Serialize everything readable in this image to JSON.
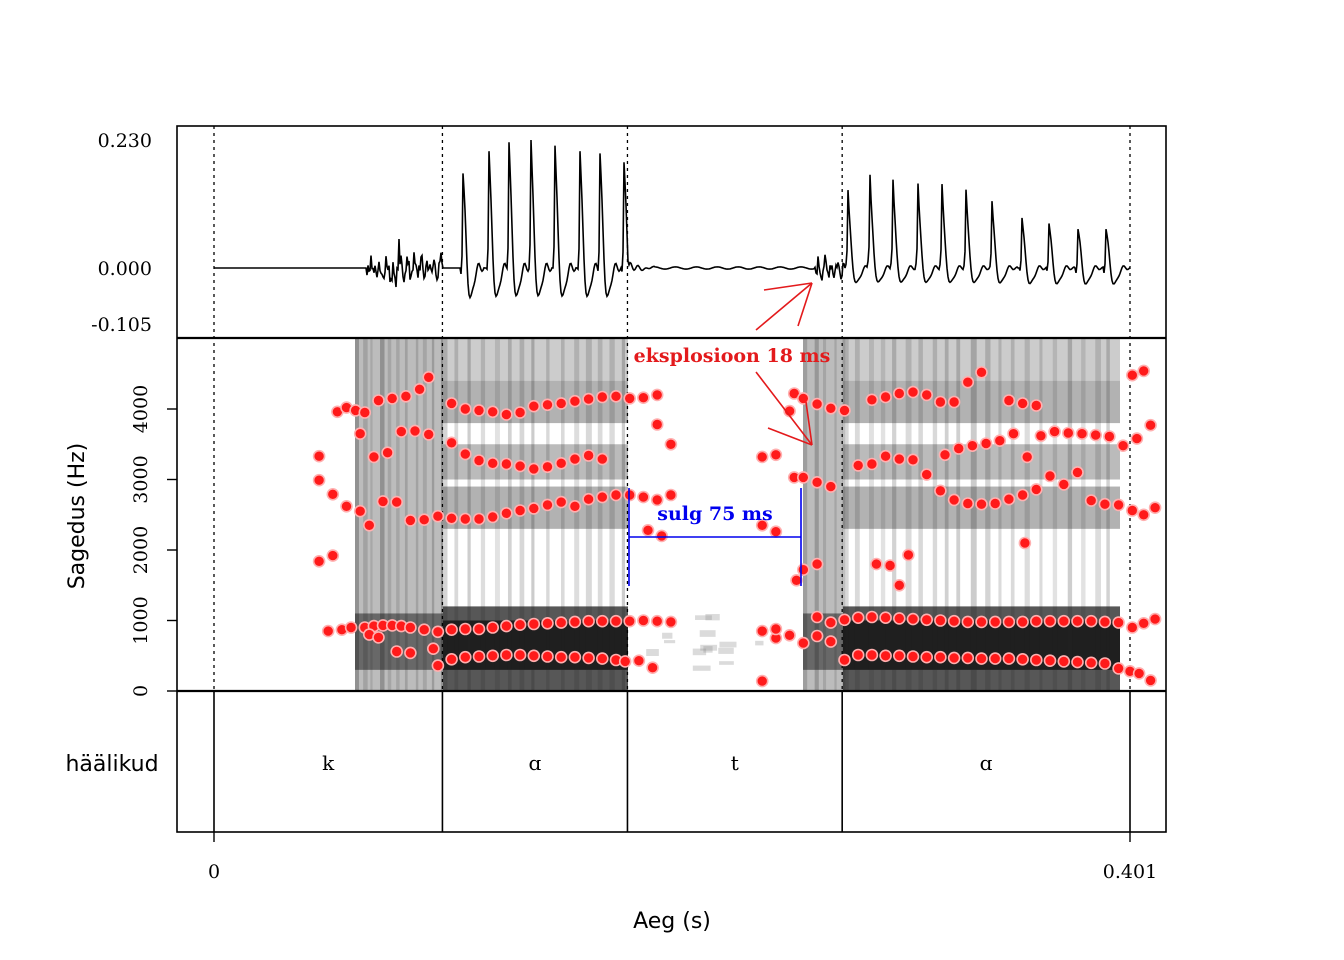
{
  "chart_data": {
    "type": "spectrogram-waveform-textgrid",
    "x_axis": {
      "label": "Aeg (s)",
      "range": [
        0,
        0.401
      ],
      "tick_labels": [
        "0",
        "0.401"
      ]
    },
    "waveform": {
      "y_range": [
        -0.105,
        0.23
      ],
      "y_tick_labels": [
        "0.230",
        "0.000",
        "-0.105"
      ]
    },
    "spectrogram": {
      "y_label": "Sagedus (Hz)",
      "y_range": [
        0,
        5000
      ],
      "y_ticks": [
        0,
        1000,
        2000,
        3000,
        4000
      ],
      "y_tick_labels": [
        "0",
        "1000",
        "2000",
        "3000",
        "4000"
      ],
      "formant_color": "#ff1a1a"
    },
    "tier": {
      "name": "häälikud",
      "boundaries": [
        0,
        0.1,
        0.181,
        0.275,
        0.401
      ],
      "intervals": [
        {
          "label": "k",
          "start": 0,
          "end": 0.1
        },
        {
          "label": "ɑ",
          "start": 0.1,
          "end": 0.181
        },
        {
          "label": "t",
          "start": 0.181,
          "end": 0.275
        },
        {
          "label": "ɑ",
          "start": 0.275,
          "end": 0.401
        }
      ]
    },
    "annotations": [
      {
        "text": "eksplosioon 18 ms",
        "color": "#e31a1c"
      },
      {
        "text": "sulg 75 ms",
        "color": "#0000ee",
        "start": 0.181,
        "end": 0.256
      }
    ],
    "formants": {
      "F1": [
        [
          0.05,
          850
        ],
        [
          0.056,
          870
        ],
        [
          0.06,
          900
        ],
        [
          0.066,
          900
        ],
        [
          0.07,
          920
        ],
        [
          0.074,
          930
        ],
        [
          0.078,
          930
        ],
        [
          0.082,
          920
        ],
        [
          0.086,
          900
        ],
        [
          0.092,
          870
        ],
        [
          0.068,
          800
        ],
        [
          0.072,
          760
        ],
        [
          0.08,
          560
        ],
        [
          0.086,
          540
        ],
        [
          0.096,
          600
        ],
        [
          0.098,
          360
        ],
        [
          0.104,
          450
        ],
        [
          0.11,
          480
        ],
        [
          0.116,
          490
        ],
        [
          0.122,
          500
        ],
        [
          0.128,
          510
        ],
        [
          0.134,
          510
        ],
        [
          0.14,
          500
        ],
        [
          0.146,
          490
        ],
        [
          0.152,
          480
        ],
        [
          0.158,
          480
        ],
        [
          0.164,
          470
        ],
        [
          0.17,
          460
        ],
        [
          0.176,
          440
        ],
        [
          0.18,
          420
        ],
        [
          0.186,
          430
        ],
        [
          0.192,
          330
        ],
        [
          0.24,
          140
        ],
        [
          0.246,
          750
        ],
        [
          0.252,
          790
        ],
        [
          0.258,
          680
        ],
        [
          0.264,
          780
        ],
        [
          0.27,
          700
        ],
        [
          0.276,
          440
        ],
        [
          0.282,
          510
        ],
        [
          0.288,
          510
        ],
        [
          0.294,
          500
        ],
        [
          0.3,
          500
        ],
        [
          0.306,
          490
        ],
        [
          0.312,
          480
        ],
        [
          0.318,
          480
        ],
        [
          0.324,
          470
        ],
        [
          0.33,
          470
        ],
        [
          0.336,
          460
        ],
        [
          0.342,
          460
        ],
        [
          0.348,
          460
        ],
        [
          0.354,
          450
        ],
        [
          0.36,
          440
        ],
        [
          0.366,
          430
        ],
        [
          0.372,
          420
        ],
        [
          0.378,
          410
        ],
        [
          0.384,
          400
        ],
        [
          0.39,
          390
        ],
        [
          0.396,
          320
        ],
        [
          0.401,
          280
        ],
        [
          0.405,
          250
        ],
        [
          0.41,
          150
        ]
      ],
      "F2": [
        [
          0.098,
          840
        ],
        [
          0.104,
          870
        ],
        [
          0.11,
          880
        ],
        [
          0.116,
          880
        ],
        [
          0.122,
          900
        ],
        [
          0.128,
          920
        ],
        [
          0.134,
          940
        ],
        [
          0.14,
          950
        ],
        [
          0.146,
          960
        ],
        [
          0.152,
          970
        ],
        [
          0.158,
          980
        ],
        [
          0.164,
          990
        ],
        [
          0.17,
          990
        ],
        [
          0.176,
          990
        ],
        [
          0.182,
          990
        ],
        [
          0.188,
          1000
        ],
        [
          0.194,
          990
        ],
        [
          0.2,
          980
        ],
        [
          0.24,
          850
        ],
        [
          0.246,
          880
        ],
        [
          0.264,
          1050
        ],
        [
          0.27,
          970
        ],
        [
          0.276,
          1010
        ],
        [
          0.282,
          1040
        ],
        [
          0.288,
          1050
        ],
        [
          0.294,
          1040
        ],
        [
          0.3,
          1030
        ],
        [
          0.306,
          1020
        ],
        [
          0.312,
          1010
        ],
        [
          0.318,
          1000
        ],
        [
          0.324,
          990
        ],
        [
          0.33,
          980
        ],
        [
          0.336,
          980
        ],
        [
          0.342,
          980
        ],
        [
          0.348,
          980
        ],
        [
          0.354,
          980
        ],
        [
          0.36,
          990
        ],
        [
          0.366,
          990
        ],
        [
          0.372,
          990
        ],
        [
          0.378,
          990
        ],
        [
          0.384,
          990
        ],
        [
          0.39,
          980
        ],
        [
          0.396,
          970
        ],
        [
          0.402,
          900
        ],
        [
          0.407,
          960
        ],
        [
          0.412,
          1020
        ]
      ],
      "F_mid": [
        [
          0.046,
          1840
        ],
        [
          0.052,
          1920
        ],
        [
          0.255,
          1570
        ],
        [
          0.258,
          1720
        ],
        [
          0.264,
          1800
        ],
        [
          0.29,
          1800
        ],
        [
          0.296,
          1780
        ],
        [
          0.3,
          1500
        ],
        [
          0.304,
          1930
        ],
        [
          0.355,
          2100
        ],
        [
          0.24,
          2350
        ],
        [
          0.246,
          2260
        ],
        [
          0.19,
          2280
        ],
        [
          0.196,
          2200
        ]
      ],
      "F3": [
        [
          0.046,
          3330
        ],
        [
          0.046,
          2990
        ],
        [
          0.052,
          2790
        ],
        [
          0.058,
          2620
        ],
        [
          0.064,
          2550
        ],
        [
          0.068,
          2350
        ],
        [
          0.074,
          2690
        ],
        [
          0.08,
          2680
        ],
        [
          0.086,
          2420
        ],
        [
          0.092,
          2430
        ],
        [
          0.098,
          2480
        ],
        [
          0.104,
          2450
        ],
        [
          0.11,
          2440
        ],
        [
          0.116,
          2440
        ],
        [
          0.122,
          2470
        ],
        [
          0.128,
          2520
        ],
        [
          0.134,
          2560
        ],
        [
          0.14,
          2590
        ],
        [
          0.146,
          2640
        ],
        [
          0.152,
          2680
        ],
        [
          0.158,
          2620
        ],
        [
          0.164,
          2720
        ],
        [
          0.17,
          2750
        ],
        [
          0.176,
          2780
        ],
        [
          0.182,
          2780
        ],
        [
          0.188,
          2750
        ],
        [
          0.194,
          2710
        ],
        [
          0.2,
          2780
        ],
        [
          0.254,
          3030
        ],
        [
          0.258,
          3030
        ],
        [
          0.264,
          2960
        ],
        [
          0.27,
          2900
        ],
        [
          0.282,
          3200
        ],
        [
          0.288,
          3220
        ],
        [
          0.294,
          3330
        ],
        [
          0.3,
          3290
        ],
        [
          0.306,
          3280
        ],
        [
          0.312,
          3070
        ],
        [
          0.318,
          2840
        ],
        [
          0.324,
          2710
        ],
        [
          0.33,
          2660
        ],
        [
          0.336,
          2650
        ],
        [
          0.342,
          2660
        ],
        [
          0.348,
          2720
        ],
        [
          0.354,
          2780
        ],
        [
          0.36,
          2860
        ],
        [
          0.366,
          3050
        ],
        [
          0.372,
          2930
        ],
        [
          0.378,
          3100
        ],
        [
          0.384,
          2700
        ],
        [
          0.39,
          2650
        ],
        [
          0.396,
          2640
        ],
        [
          0.402,
          2560
        ],
        [
          0.407,
          2500
        ],
        [
          0.412,
          2600
        ]
      ],
      "F4": [
        [
          0.064,
          3650
        ],
        [
          0.07,
          3320
        ],
        [
          0.076,
          3380
        ],
        [
          0.082,
          3680
        ],
        [
          0.088,
          3690
        ],
        [
          0.094,
          3640
        ],
        [
          0.104,
          3520
        ],
        [
          0.11,
          3360
        ],
        [
          0.116,
          3270
        ],
        [
          0.122,
          3230
        ],
        [
          0.128,
          3220
        ],
        [
          0.134,
          3190
        ],
        [
          0.14,
          3150
        ],
        [
          0.146,
          3180
        ],
        [
          0.152,
          3230
        ],
        [
          0.158,
          3290
        ],
        [
          0.164,
          3340
        ],
        [
          0.17,
          3290
        ],
        [
          0.194,
          3780
        ],
        [
          0.2,
          3500
        ],
        [
          0.24,
          3320
        ],
        [
          0.246,
          3350
        ],
        [
          0.252,
          3970
        ],
        [
          0.254,
          4220
        ],
        [
          0.32,
          3350
        ],
        [
          0.326,
          3440
        ],
        [
          0.332,
          3480
        ],
        [
          0.338,
          3510
        ],
        [
          0.344,
          3550
        ],
        [
          0.35,
          3650
        ],
        [
          0.356,
          3320
        ],
        [
          0.362,
          3620
        ],
        [
          0.368,
          3680
        ],
        [
          0.374,
          3660
        ],
        [
          0.38,
          3650
        ],
        [
          0.386,
          3630
        ],
        [
          0.392,
          3610
        ],
        [
          0.398,
          3480
        ],
        [
          0.404,
          3580
        ],
        [
          0.41,
          3770
        ]
      ],
      "F5": [
        [
          0.054,
          3960
        ],
        [
          0.058,
          4020
        ],
        [
          0.062,
          3980
        ],
        [
          0.066,
          3950
        ],
        [
          0.072,
          4120
        ],
        [
          0.078,
          4150
        ],
        [
          0.084,
          4180
        ],
        [
          0.09,
          4280
        ],
        [
          0.094,
          4450
        ],
        [
          0.104,
          4080
        ],
        [
          0.11,
          4000
        ],
        [
          0.116,
          3980
        ],
        [
          0.122,
          3960
        ],
        [
          0.128,
          3920
        ],
        [
          0.134,
          3950
        ],
        [
          0.14,
          4040
        ],
        [
          0.146,
          4060
        ],
        [
          0.152,
          4080
        ],
        [
          0.158,
          4110
        ],
        [
          0.164,
          4140
        ],
        [
          0.17,
          4170
        ],
        [
          0.176,
          4180
        ],
        [
          0.182,
          4150
        ],
        [
          0.188,
          4160
        ],
        [
          0.194,
          4200
        ],
        [
          0.258,
          4150
        ],
        [
          0.264,
          4070
        ],
        [
          0.27,
          4010
        ],
        [
          0.276,
          3980
        ],
        [
          0.288,
          4130
        ],
        [
          0.294,
          4170
        ],
        [
          0.3,
          4220
        ],
        [
          0.306,
          4240
        ],
        [
          0.312,
          4200
        ],
        [
          0.318,
          4100
        ],
        [
          0.324,
          4100
        ],
        [
          0.33,
          4380
        ],
        [
          0.336,
          4520
        ],
        [
          0.348,
          4120
        ],
        [
          0.354,
          4080
        ],
        [
          0.36,
          4050
        ],
        [
          0.402,
          4480
        ],
        [
          0.407,
          4540
        ]
      ]
    }
  }
}
